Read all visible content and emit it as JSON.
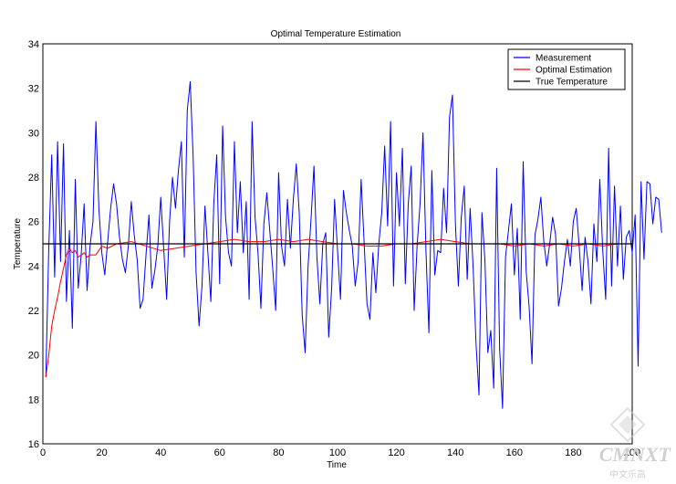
{
  "chart_data": {
    "type": "line",
    "title": "Optimal Temperature Estimation",
    "xlabel": "Time",
    "ylabel": "Temperature",
    "xlim": [
      0,
      200
    ],
    "ylim": [
      16,
      34
    ],
    "xticks": [
      0,
      20,
      40,
      60,
      80,
      100,
      120,
      140,
      160,
      180,
      200
    ],
    "yticks": [
      16,
      18,
      20,
      22,
      24,
      26,
      28,
      30,
      32,
      34
    ],
    "grid": false,
    "legend_position": "top-right",
    "series": [
      {
        "name": "Measurement",
        "color": "#0000ff",
        "x_start": 1,
        "x_step": 1,
        "values": [
          19.0,
          24.8,
          29.0,
          23.5,
          29.6,
          24.2,
          29.5,
          22.4,
          25.6,
          21.2,
          27.9,
          23.0,
          24.5,
          26.8,
          22.9,
          24.9,
          26.0,
          30.5,
          26.6,
          24.6,
          23.6,
          25.1,
          26.6,
          27.7,
          26.8,
          25.3,
          24.3,
          23.7,
          24.9,
          26.9,
          25.4,
          24.3,
          22.1,
          22.5,
          24.5,
          26.3,
          23.0,
          23.8,
          24.9,
          27.1,
          24.8,
          22.5,
          26.0,
          28.0,
          26.6,
          28.3,
          29.6,
          24.4,
          31.0,
          32.3,
          28.9,
          23.7,
          21.3,
          23.1,
          26.7,
          24.6,
          22.4,
          26.8,
          29.0,
          23.2,
          30.3,
          26.2,
          24.6,
          24.0,
          29.6,
          25.5,
          27.8,
          24.6,
          26.9,
          22.5,
          30.5,
          26.2,
          24.6,
          22.1,
          25.9,
          27.3,
          25.6,
          23.9,
          22.0,
          28.2,
          24.9,
          24.0,
          27.0,
          24.8,
          27.0,
          28.6,
          26.4,
          21.8,
          20.1,
          24.0,
          26.1,
          28.5,
          24.4,
          22.3,
          25.0,
          25.5,
          20.8,
          23.0,
          27.0,
          24.7,
          22.5,
          27.4,
          26.4,
          25.6,
          24.9,
          23.1,
          24.2,
          27.9,
          25.1,
          22.3,
          21.6,
          24.6,
          22.8,
          25.0,
          26.4,
          29.4,
          25.8,
          30.5,
          23.1,
          28.2,
          25.8,
          29.3,
          23.2,
          26.8,
          28.5,
          22.0,
          24.9,
          26.8,
          30.0,
          24.7,
          21.0,
          28.3,
          23.6,
          24.7,
          24.6,
          27.5,
          25.5,
          30.7,
          31.7,
          25.9,
          23.1,
          26.2,
          27.6,
          23.4,
          26.6,
          24.0,
          20.5,
          18.2,
          26.4,
          24.3,
          20.1,
          21.1,
          18.5,
          28.4,
          20.3,
          17.6,
          24.4,
          25.6,
          26.8,
          23.6,
          25.7,
          21.6,
          28.7,
          23.8,
          22.2,
          19.6,
          25.4,
          26.1,
          27.1,
          25.1,
          24.0,
          25.0,
          26.2,
          25.4,
          22.2,
          23.0,
          24.2,
          25.2,
          24.0,
          26.0,
          26.6,
          24.9,
          22.9,
          25.3,
          24.2,
          22.3,
          25.9,
          24.2,
          27.9,
          24.7,
          22.5,
          29.3,
          23.1,
          27.6,
          24.0,
          26.7,
          23.4,
          25.3,
          25.6,
          24.6,
          26.3,
          19.5,
          27.8,
          24.3,
          27.8,
          27.7,
          25.9,
          27.1,
          27.0,
          25.5
        ]
      },
      {
        "name": "Optimal Estimation",
        "color": "#ff0000",
        "points": [
          [
            1,
            19.0
          ],
          [
            2,
            20.0
          ],
          [
            3,
            21.3
          ],
          [
            4,
            22.0
          ],
          [
            5,
            22.6
          ],
          [
            6,
            23.3
          ],
          [
            7,
            23.9
          ],
          [
            8,
            24.5
          ],
          [
            9,
            24.8
          ],
          [
            10,
            24.6
          ],
          [
            11,
            24.7
          ],
          [
            12,
            24.4
          ],
          [
            13,
            24.5
          ],
          [
            14,
            24.6
          ],
          [
            15,
            24.4
          ],
          [
            16,
            24.5
          ],
          [
            18,
            24.5
          ],
          [
            20,
            24.9
          ],
          [
            22,
            24.8
          ],
          [
            25,
            25.0
          ],
          [
            30,
            25.1
          ],
          [
            35,
            24.9
          ],
          [
            40,
            24.7
          ],
          [
            45,
            24.8
          ],
          [
            50,
            24.9
          ],
          [
            55,
            25.0
          ],
          [
            60,
            25.1
          ],
          [
            65,
            25.2
          ],
          [
            70,
            25.1
          ],
          [
            75,
            25.1
          ],
          [
            80,
            25.2
          ],
          [
            85,
            25.1
          ],
          [
            90,
            25.2
          ],
          [
            95,
            25.1
          ],
          [
            100,
            25.0
          ],
          [
            105,
            25.0
          ],
          [
            110,
            24.9
          ],
          [
            115,
            24.9
          ],
          [
            120,
            25.0
          ],
          [
            125,
            25.0
          ],
          [
            130,
            25.1
          ],
          [
            135,
            25.2
          ],
          [
            140,
            25.1
          ],
          [
            145,
            25.0
          ],
          [
            150,
            25.0
          ],
          [
            155,
            25.0
          ],
          [
            160,
            24.9
          ],
          [
            165,
            25.0
          ],
          [
            170,
            24.9
          ],
          [
            175,
            25.0
          ],
          [
            180,
            24.9
          ],
          [
            185,
            25.0
          ],
          [
            190,
            24.9
          ],
          [
            195,
            25.0
          ],
          [
            200,
            25.0
          ]
        ]
      },
      {
        "name": "True Temperature",
        "color": "#000000",
        "points": [
          [
            0,
            25
          ],
          [
            200,
            25
          ]
        ]
      }
    ]
  },
  "watermark": {
    "brand": "CMNXT",
    "sub": "中文乐高"
  }
}
